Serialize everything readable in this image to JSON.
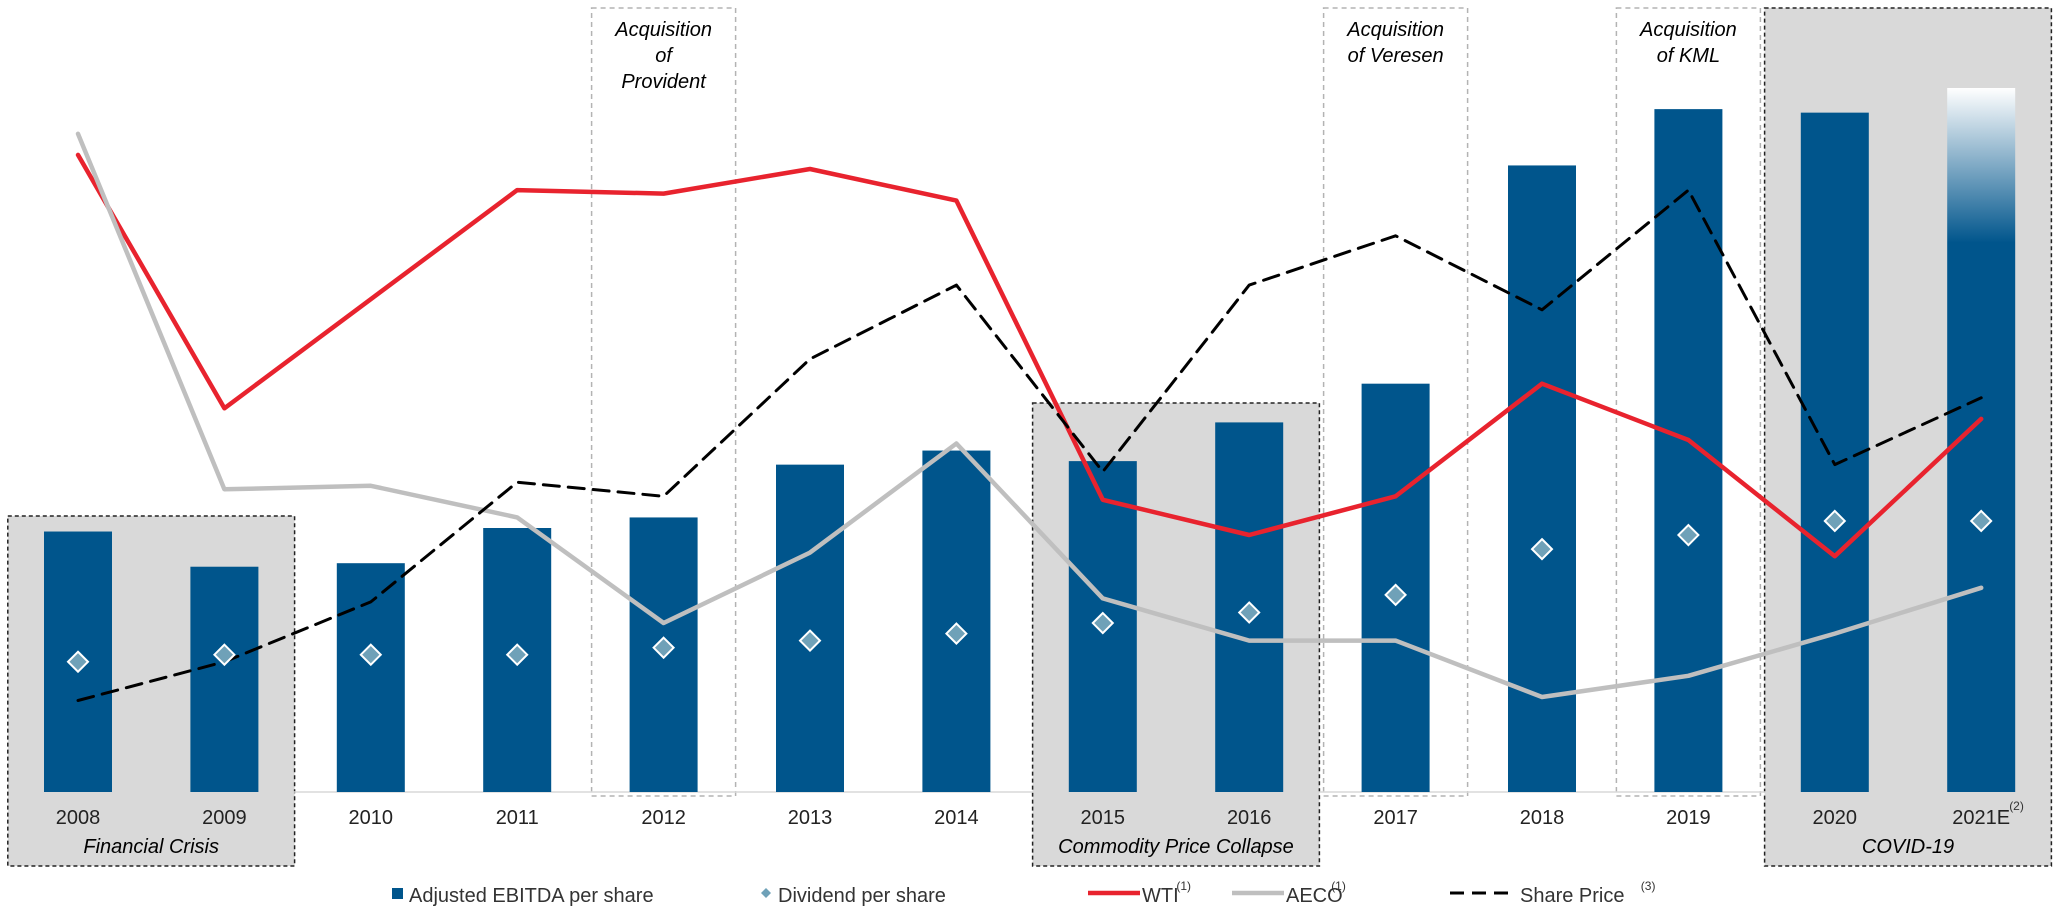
{
  "chart_data": {
    "type": "bar",
    "categories": [
      "2008",
      "2009",
      "2010",
      "2011",
      "2012",
      "2013",
      "2014",
      "2015",
      "2016",
      "2017",
      "2018",
      "2019",
      "2020",
      "2021E"
    ],
    "ylim": [
      0,
      100
    ],
    "grid": false,
    "series": [
      {
        "name": "Adjusted EBITDA per share",
        "type": "bar",
        "color": "#00558c",
        "values": [
          37,
          32,
          32.5,
          37.5,
          39,
          46.5,
          48.5,
          47,
          52.5,
          58,
          89,
          97,
          96.5,
          100
        ]
      },
      {
        "name": "Dividend per share",
        "type": "scatter",
        "marker": "diamond",
        "color": "#6fa1b8",
        "values": [
          18.5,
          19.5,
          19.5,
          19.5,
          20.5,
          21.5,
          22.5,
          24,
          25.5,
          28,
          34.5,
          36.5,
          38.5,
          38.5
        ]
      },
      {
        "name": "WTI",
        "type": "line",
        "color": "#e8232e",
        "values": [
          90.5,
          54.5,
          70,
          85.5,
          85,
          88.5,
          84,
          41.5,
          36.5,
          42,
          58,
          50,
          33.5,
          53
        ]
      },
      {
        "name": "AECO",
        "type": "line",
        "color": "#bfbfbf",
        "values": [
          93.5,
          43,
          43.5,
          39,
          24,
          34,
          49.5,
          27.5,
          21.5,
          21.5,
          13.5,
          16.5,
          22.5,
          29
        ]
      },
      {
        "name": "Share Price",
        "type": "line",
        "dash": true,
        "color": "#000000",
        "values": [
          13,
          18.5,
          27,
          44,
          42,
          61.5,
          72,
          45.5,
          72,
          79,
          68.5,
          85.5,
          46.5,
          56
        ]
      }
    ],
    "projected_category": "2021E",
    "tick_superscripts": {
      "2021E": "(2)"
    },
    "legend": [
      {
        "label": "Adjusted EBITDA per share",
        "sup": ""
      },
      {
        "label": "Dividend per share",
        "sup": ""
      },
      {
        "label": "WTI",
        "sup": "(1)"
      },
      {
        "label": "AECO",
        "sup": "(1)"
      },
      {
        "label": "Share Price",
        "sup": "(3)"
      }
    ],
    "legend_placement": "bottom",
    "annotations": [
      {
        "kind": "shaded",
        "from": "2008",
        "to": "2009",
        "label": "Financial Crisis",
        "label_position": "bottom"
      },
      {
        "kind": "dashed",
        "from": "2012",
        "to": "2012",
        "lines": [
          "Acquisition",
          "of",
          "Provident"
        ]
      },
      {
        "kind": "shaded",
        "from": "2015",
        "to": "2016",
        "label": "Commodity Price Collapse",
        "label_position": "bottom"
      },
      {
        "kind": "dashed",
        "from": "2017",
        "to": "2017",
        "lines": [
          "Acquisition",
          "of Veresen"
        ]
      },
      {
        "kind": "dashed",
        "from": "2019",
        "to": "2019",
        "lines": [
          "Acquisition",
          "of KML"
        ]
      },
      {
        "kind": "shaded",
        "from": "2020",
        "to": "2021E",
        "label": "COVID-19",
        "label_position": "bottom"
      }
    ]
  }
}
